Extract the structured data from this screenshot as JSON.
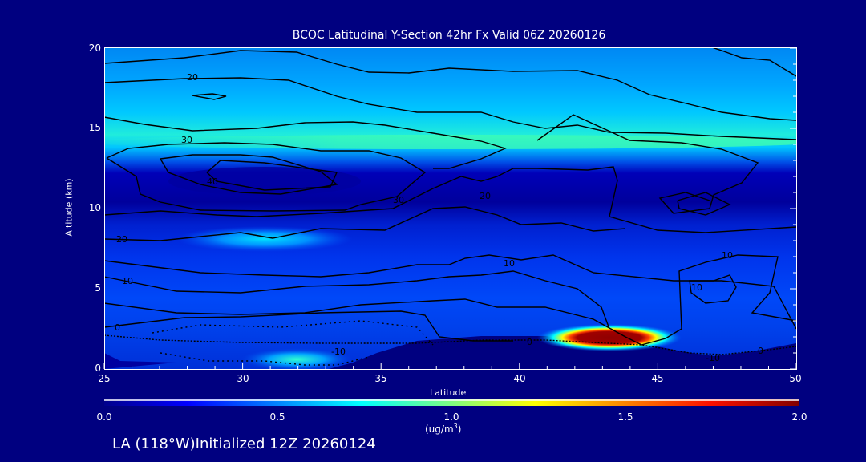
{
  "chart_data": {
    "type": "heatmap",
    "title": "BCOC Latitudinal Y-Section 42hr  Fx Valid 06Z 20260126",
    "xlabel": "Latitude",
    "ylabel": "Altitude (km)",
    "xlim": [
      25,
      50
    ],
    "ylim": [
      0,
      20
    ],
    "x_ticks": [
      "25",
      "30",
      "35",
      "40",
      "45",
      "50"
    ],
    "y_ticks": [
      "0",
      "5",
      "10",
      "15",
      "20"
    ],
    "colorbar": {
      "range": [
        0.0,
        2.0
      ],
      "ticks": [
        "0.0",
        "0.5",
        "1.0",
        "1.5",
        "2.0"
      ],
      "units_prefix": "(ug/m",
      "units_sup": "3",
      "units_suffix": ")",
      "colormap": "jet"
    },
    "features": [
      {
        "name": "surface maximum",
        "lat": 43.3,
        "alt_km": 1.8,
        "value": 2.0
      },
      {
        "name": "mid-level maximum",
        "lat": 30.8,
        "alt_km": 8.0,
        "value": 0.6
      },
      {
        "name": "upper-level band",
        "lat_range": [
          25,
          50
        ],
        "alt_km": 14.2,
        "value": 0.85
      }
    ],
    "contour_labels": [
      "20",
      "30",
      "40",
      "30",
      "20",
      "10",
      "0",
      "-10",
      "20",
      "10",
      "10",
      "10",
      "0",
      "-10",
      "0"
    ]
  },
  "footer": "LA (118°W)Initialized 12Z 20260124"
}
